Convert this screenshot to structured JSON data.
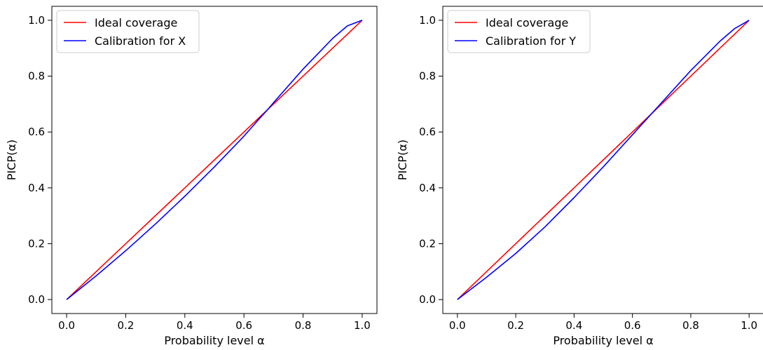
{
  "chart_data": [
    {
      "type": "line",
      "title": "",
      "xlabel": "Probability level α",
      "ylabel": "PICP(α)",
      "xlim": [
        -0.05,
        1.05
      ],
      "ylim": [
        -0.05,
        1.05
      ],
      "xticks": [
        0.0,
        0.2,
        0.4,
        0.6,
        0.8,
        1.0
      ],
      "yticks": [
        0.0,
        0.2,
        0.4,
        0.6,
        0.8,
        1.0
      ],
      "tick_labels_x": [
        "0.0",
        "0.2",
        "0.4",
        "0.6",
        "0.8",
        "1.0"
      ],
      "tick_labels_y": [
        "0.0",
        "0.2",
        "0.4",
        "0.6",
        "0.8",
        "1.0"
      ],
      "grid": false,
      "legend_position": "top-left",
      "series": [
        {
          "name": "Ideal coverage",
          "color": "#ff0000",
          "x": [
            0.0,
            0.1,
            0.2,
            0.3,
            0.4,
            0.5,
            0.6,
            0.7,
            0.8,
            0.9,
            1.0
          ],
          "y": [
            0.0,
            0.1,
            0.2,
            0.3,
            0.4,
            0.5,
            0.6,
            0.7,
            0.8,
            0.9,
            1.0
          ]
        },
        {
          "name": "Calibration for X",
          "color": "#0000ff",
          "x": [
            0.0,
            0.1,
            0.2,
            0.3,
            0.4,
            0.5,
            0.6,
            0.65,
            0.68,
            0.7,
            0.8,
            0.9,
            0.95,
            1.0
          ],
          "y": [
            0.0,
            0.085,
            0.175,
            0.27,
            0.37,
            0.475,
            0.585,
            0.645,
            0.68,
            0.705,
            0.825,
            0.935,
            0.98,
            1.0
          ]
        }
      ]
    },
    {
      "type": "line",
      "title": "",
      "xlabel": "Probability level α",
      "ylabel": "PICP(α)",
      "xlim": [
        -0.05,
        1.05
      ],
      "ylim": [
        -0.05,
        1.05
      ],
      "xticks": [
        0.0,
        0.2,
        0.4,
        0.6,
        0.8,
        1.0
      ],
      "yticks": [
        0.0,
        0.2,
        0.4,
        0.6,
        0.8,
        1.0
      ],
      "tick_labels_x": [
        "0.0",
        "0.2",
        "0.4",
        "0.6",
        "0.8",
        "1.0"
      ],
      "tick_labels_y": [
        "0.0",
        "0.2",
        "0.4",
        "0.6",
        "0.8",
        "1.0"
      ],
      "grid": false,
      "legend_position": "top-left",
      "series": [
        {
          "name": "Ideal coverage",
          "color": "#ff0000",
          "x": [
            0.0,
            0.1,
            0.2,
            0.3,
            0.4,
            0.5,
            0.6,
            0.7,
            0.8,
            0.9,
            1.0
          ],
          "y": [
            0.0,
            0.1,
            0.2,
            0.3,
            0.4,
            0.5,
            0.6,
            0.7,
            0.8,
            0.9,
            1.0
          ]
        },
        {
          "name": "Calibration for Y",
          "color": "#0000ff",
          "x": [
            0.0,
            0.1,
            0.2,
            0.3,
            0.4,
            0.5,
            0.6,
            0.7,
            0.8,
            0.9,
            0.95,
            1.0
          ],
          "y": [
            0.0,
            0.08,
            0.165,
            0.26,
            0.365,
            0.475,
            0.59,
            0.705,
            0.82,
            0.925,
            0.97,
            1.0
          ]
        }
      ]
    }
  ]
}
